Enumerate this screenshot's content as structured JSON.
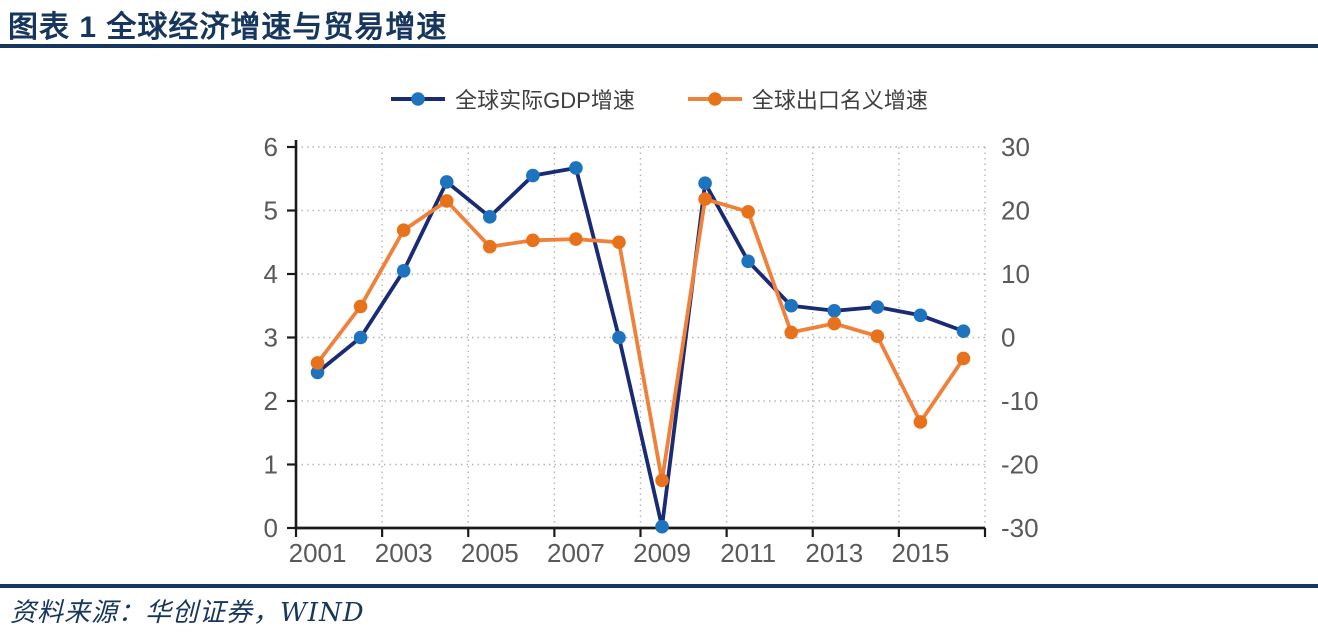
{
  "title": "图表 1 全球经济增速与贸易增速",
  "source": "资料来源：华创证券，WIND",
  "colors": {
    "navy": "#17365D",
    "gdp_line": "#1A2B75",
    "gdp_marker": "#1E73BE",
    "export_line": "#F0813A",
    "export_marker": "#E8721C",
    "axis_text": "#595959",
    "legend_text": "#3F3F3F",
    "grid": "#B5B5B5",
    "axis_line": "#1A1A1A"
  },
  "chart_data": {
    "type": "line",
    "title": "全球经济增速与贸易增速",
    "categories": [
      2001,
      2002,
      2003,
      2004,
      2005,
      2006,
      2007,
      2008,
      2009,
      2010,
      2011,
      2012,
      2013,
      2014,
      2015,
      2016
    ],
    "x_tick_labels": [
      "2001",
      "2003",
      "2005",
      "2007",
      "2009",
      "2011",
      "2013",
      "2015"
    ],
    "series": [
      {
        "name": "全球实际GDP增速",
        "axis": "left",
        "values": [
          2.45,
          3.0,
          4.05,
          5.45,
          4.9,
          5.55,
          5.67,
          3.0,
          0.02,
          5.43,
          4.2,
          3.5,
          3.42,
          3.48,
          3.35,
          3.1
        ]
      },
      {
        "name": "全球出口名义增速",
        "axis": "right",
        "values": [
          -4.0,
          4.9,
          16.9,
          21.5,
          14.3,
          15.3,
          15.5,
          15.0,
          -22.5,
          21.8,
          19.8,
          0.8,
          2.2,
          0.2,
          -13.3,
          -3.3
        ]
      }
    ],
    "left_axis": {
      "min": 0,
      "max": 6,
      "ticks": [
        0,
        1,
        2,
        3,
        4,
        5,
        6
      ]
    },
    "right_axis": {
      "min": -30,
      "max": 30,
      "ticks": [
        -30,
        -20,
        -10,
        0,
        10,
        20,
        30
      ]
    },
    "grid": "dotted",
    "legend_position": "top-center"
  }
}
